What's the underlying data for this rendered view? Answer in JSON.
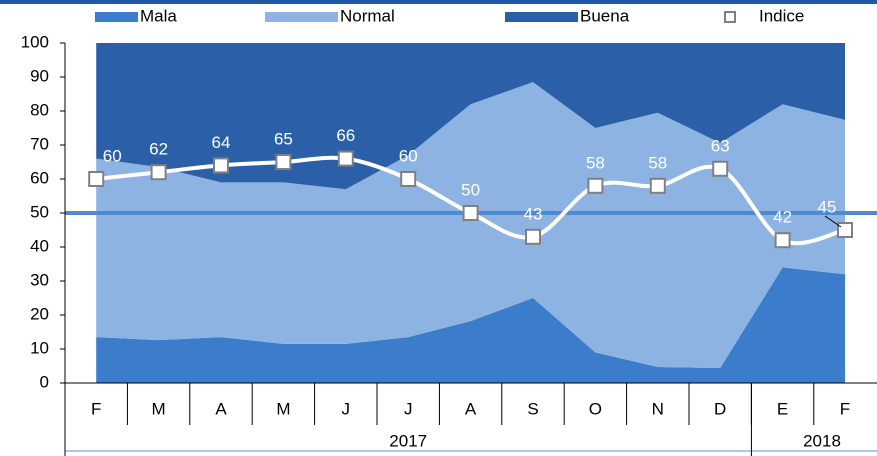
{
  "chart_data": {
    "type": "stacked_area_line",
    "category_groups": [
      {
        "label": "2017",
        "categories": [
          "F",
          "M",
          "A",
          "M",
          "J",
          "J",
          "A",
          "S",
          "O",
          "N",
          "D"
        ]
      },
      {
        "label": "2018",
        "categories": [
          "E",
          "F"
        ]
      }
    ],
    "series": [
      {
        "name": "Mala",
        "color": "#3b7dcb",
        "kind": "area",
        "values": [
          13.5,
          12.6,
          13.5,
          11.5,
          11.5,
          13.5,
          18.2,
          25,
          9,
          4.7,
          4.4,
          34,
          32
        ]
      },
      {
        "name": "Normal",
        "color": "#8db3e2",
        "kind": "area",
        "values": [
          52.5,
          50.9,
          45.5,
          47.5,
          45.5,
          53.5,
          63.8,
          63.5,
          66,
          74.8,
          66.2,
          48,
          45.4
        ]
      },
      {
        "name": "Buena",
        "color": "#2b60a8",
        "kind": "area",
        "values": [
          34,
          36.5,
          41,
          41,
          43,
          33,
          18,
          11.5,
          25,
          20.5,
          29.4,
          18,
          22.6
        ]
      },
      {
        "name": "Indice",
        "color": "#ffffff",
        "marker_color": "#808080",
        "kind": "line",
        "values": [
          60,
          62,
          64,
          65,
          66,
          60,
          50,
          43,
          58,
          58,
          63,
          42,
          45
        ]
      }
    ],
    "reference_line": {
      "value": 50,
      "color": "#4d8ad0"
    },
    "ylim": [
      0,
      100
    ],
    "yticks": [
      0,
      10,
      20,
      30,
      40,
      50,
      60,
      70,
      80,
      90,
      100
    ],
    "grid": false
  }
}
